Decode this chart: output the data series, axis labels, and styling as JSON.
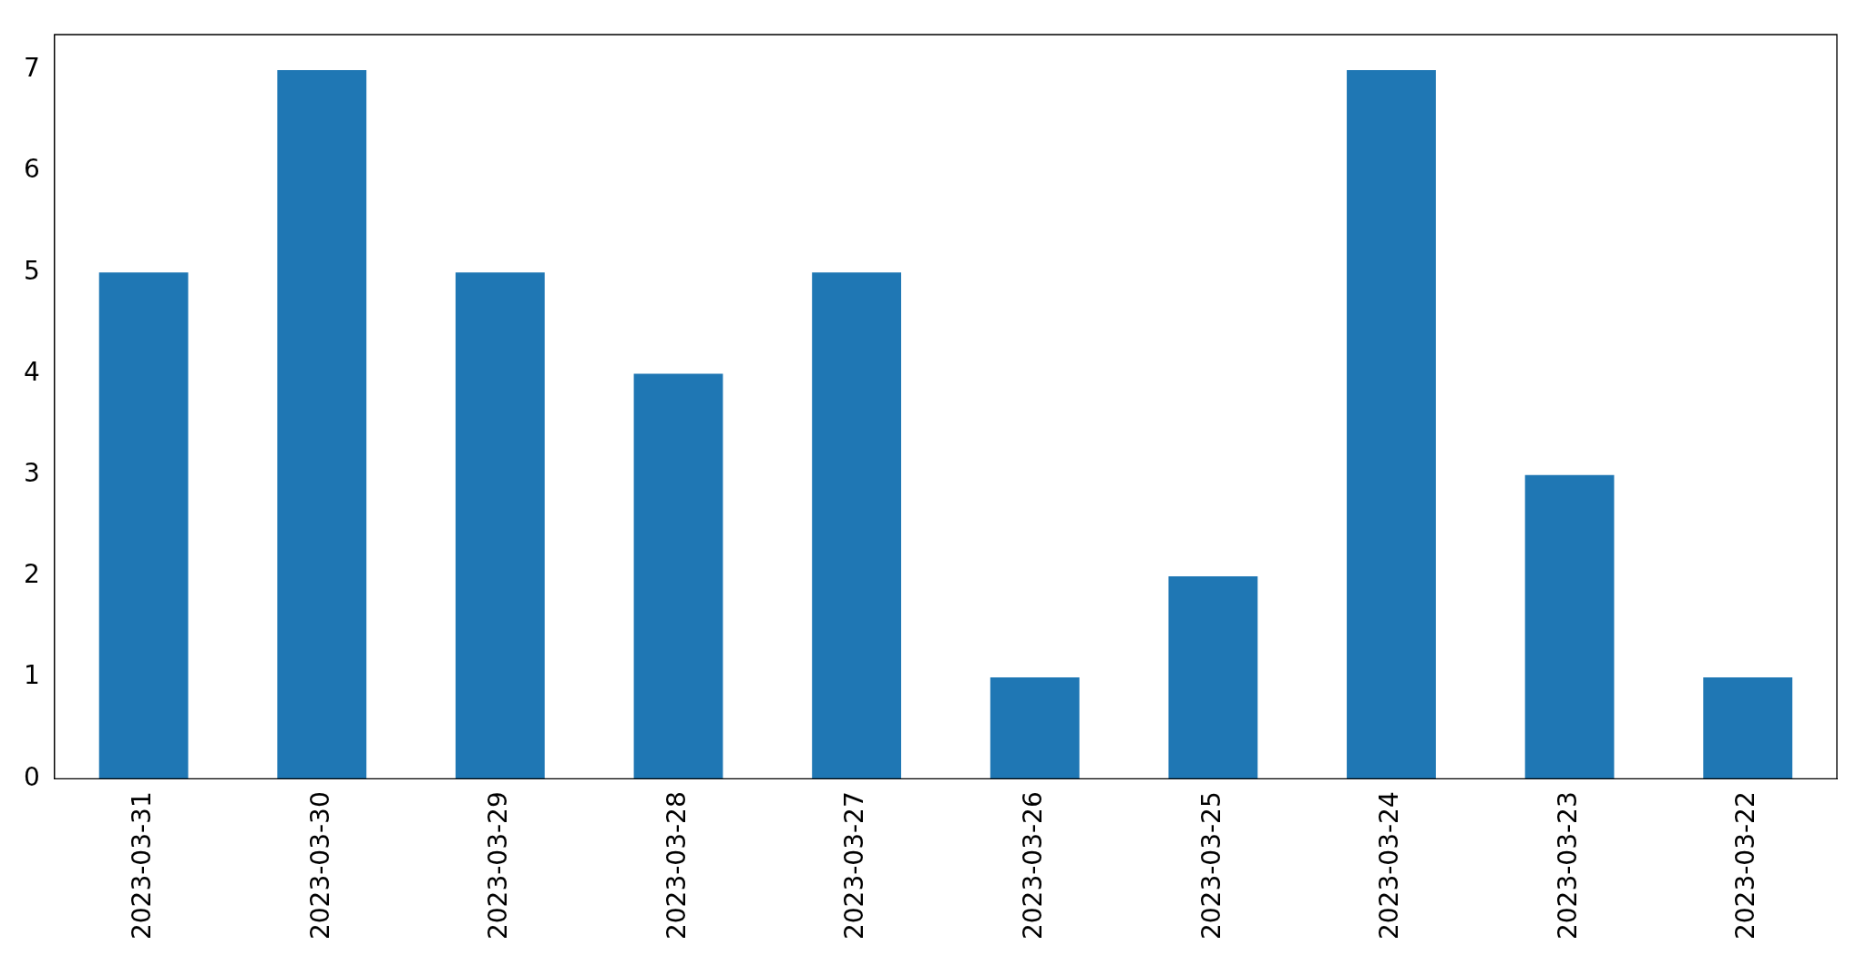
{
  "chart_data": {
    "type": "bar",
    "categories": [
      "2023-03-31",
      "2023-03-30",
      "2023-03-29",
      "2023-03-28",
      "2023-03-27",
      "2023-03-26",
      "2023-03-25",
      "2023-03-24",
      "2023-03-23",
      "2023-03-22"
    ],
    "values": [
      5,
      7,
      5,
      4,
      5,
      1,
      2,
      7,
      3,
      1
    ],
    "color": "#1f77b4",
    "ylim": [
      0,
      7.35
    ],
    "yticks": [
      0,
      1,
      2,
      3,
      4,
      5,
      6,
      7
    ],
    "grid": false,
    "legend": false
  }
}
